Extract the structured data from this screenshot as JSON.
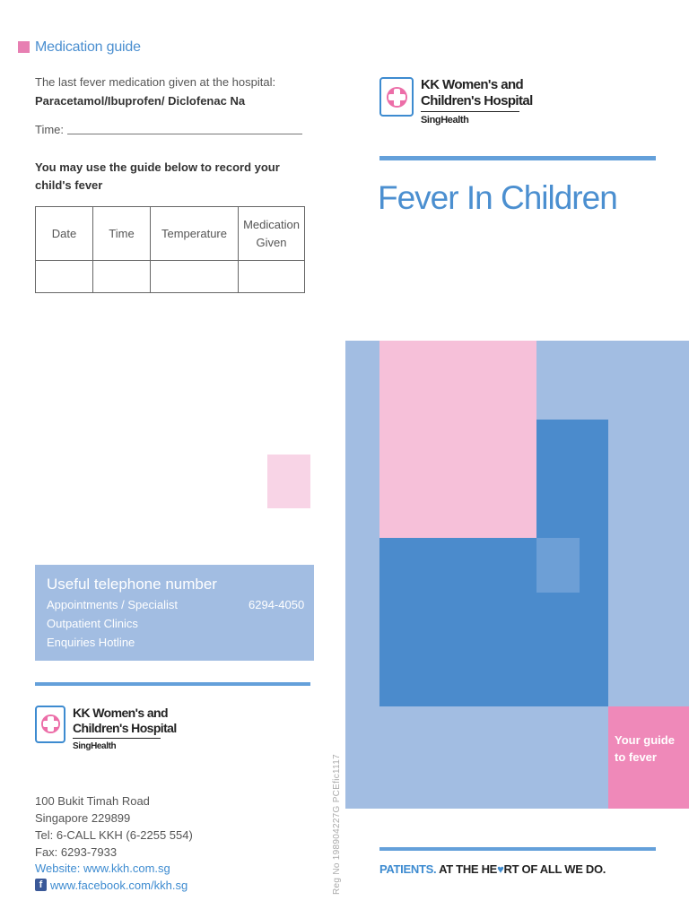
{
  "medication_guide": {
    "title": "Medication guide",
    "last_med_label": "The last fever medication given at the hospital:",
    "med_names": "Paracetamol/Ibuprofen/ Diclofenac Na",
    "time_label": "Time:",
    "guide_text": "You may use the guide below to record your child's fever",
    "table": {
      "headers": [
        "Date",
        "Time",
        "Temperature",
        "Medication Given"
      ]
    }
  },
  "telephone": {
    "title": "Useful telephone number",
    "rows": [
      "Appointments / Specialist",
      "Outpatient Clinics",
      "Enquiries Hotline"
    ],
    "number": "6294-4050"
  },
  "logo": {
    "line1": "KK Women's and",
    "line2": "Children's Hospital",
    "sub": "SingHealth",
    "icon": "kkh-cross-logo-icon"
  },
  "address": {
    "street": "100 Bukit Timah Road",
    "city": "Singapore 229899",
    "tel": "Tel: 6-CALL KKH (6-2255 554)",
    "fax": "Fax: 6293-7933",
    "website": "Website: www.kkh.com.sg",
    "facebook": "www.facebook.com/kkh.sg",
    "facebook_icon": "facebook-icon"
  },
  "reg_no": "Reg No 198904227G  PCEfic1117",
  "cover": {
    "title": "Fever In Children",
    "guide_label": "Your guide to fever",
    "tagline_a": "PATIENTS.",
    "tagline_b": "AT THE HE",
    "tagline_heart": "♥",
    "tagline_c": "RT OF ALL WE DO."
  },
  "colors": {
    "accent_blue": "#4b8fd0",
    "pink": "#ef89b9",
    "light_blue": "#a2bde2"
  }
}
